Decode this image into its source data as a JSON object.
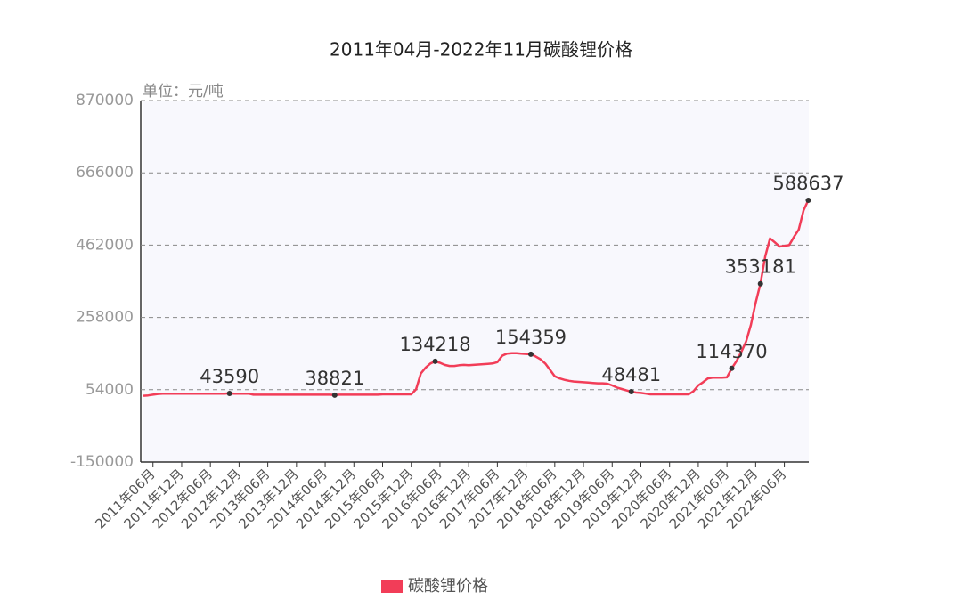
{
  "chart_data": {
    "type": "line",
    "title": "2011年04月-2022年11月碳酸锂价格",
    "y_label": "单位：元/吨",
    "categories": [
      null,
      null,
      "2011年06月",
      null,
      null,
      null,
      null,
      null,
      "2011年12月",
      null,
      null,
      null,
      null,
      null,
      "2012年06月",
      null,
      null,
      null,
      null,
      null,
      "2012年12月",
      null,
      null,
      null,
      null,
      null,
      "2013年06月",
      null,
      null,
      null,
      null,
      null,
      "2013年12月",
      null,
      null,
      null,
      null,
      null,
      "2014年06月",
      null,
      null,
      null,
      null,
      null,
      "2014年12月",
      null,
      null,
      null,
      null,
      null,
      "2015年06月",
      null,
      null,
      null,
      null,
      null,
      "2015年12月",
      null,
      null,
      null,
      null,
      null,
      "2016年06月",
      null,
      null,
      null,
      null,
      null,
      "2016年12月",
      null,
      null,
      null,
      null,
      null,
      "2017年06月",
      null,
      null,
      null,
      null,
      null,
      "2017年12月",
      null,
      null,
      null,
      null,
      null,
      "2018年06月",
      null,
      null,
      null,
      null,
      null,
      "2018年12月",
      null,
      null,
      null,
      null,
      null,
      "2019年06月",
      null,
      null,
      null,
      null,
      null,
      "2019年12月",
      null,
      null,
      null,
      null,
      null,
      "2020年06月",
      null,
      null,
      null,
      null,
      null,
      "2020年12月",
      null,
      null,
      null,
      null,
      null,
      "2021年06月",
      null,
      null,
      null,
      null,
      null,
      "2021年12月",
      null,
      null,
      null,
      null,
      null,
      "2022年06月",
      null,
      null,
      null,
      null,
      null
    ],
    "series": [
      {
        "name": "碳酸锂价格",
        "color": "#f23d58",
        "values": [
          37000,
          38000,
          40000,
          42000,
          43000,
          43000,
          43000,
          43000,
          43000,
          43000,
          43000,
          43000,
          43000,
          43000,
          43000,
          43000,
          43000,
          43000,
          43590,
          43000,
          43000,
          43000,
          43000,
          40000,
          40000,
          40000,
          40000,
          40000,
          40000,
          40000,
          40000,
          40000,
          40000,
          40000,
          40000,
          40000,
          40000,
          40000,
          40000,
          40000,
          38821,
          40000,
          40000,
          40000,
          40000,
          40000,
          40000,
          40000,
          40000,
          40000,
          41000,
          41000,
          41000,
          41000,
          41000,
          41000,
          41000,
          55000,
          100000,
          116000,
          128000,
          134218,
          130000,
          124000,
          121000,
          121000,
          123000,
          124000,
          123000,
          124000,
          125000,
          126000,
          127000,
          128000,
          132000,
          150000,
          156000,
          157000,
          157000,
          156000,
          155000,
          154359,
          148000,
          140000,
          128000,
          110000,
          92000,
          86000,
          82000,
          79000,
          77000,
          76000,
          75000,
          74000,
          73000,
          72000,
          72000,
          71000,
          66000,
          60000,
          56000,
          52000,
          48481,
          46000,
          45000,
          43000,
          41000,
          41000,
          41000,
          41000,
          41000,
          41000,
          41000,
          41000,
          41000,
          50000,
          66000,
          75000,
          86000,
          88000,
          88000,
          88000,
          89000,
          114370,
          135000,
          161000,
          190000,
          237000,
          300000,
          353181,
          430000,
          481000,
          470000,
          458000,
          460000,
          462000,
          485000,
          506000,
          560000,
          588637
        ]
      }
    ],
    "ylim": [
      -150000,
      870000
    ],
    "yticks": [
      -150000,
      54000,
      258000,
      462000,
      666000,
      870000
    ],
    "grid": true,
    "legend": "bottom"
  }
}
